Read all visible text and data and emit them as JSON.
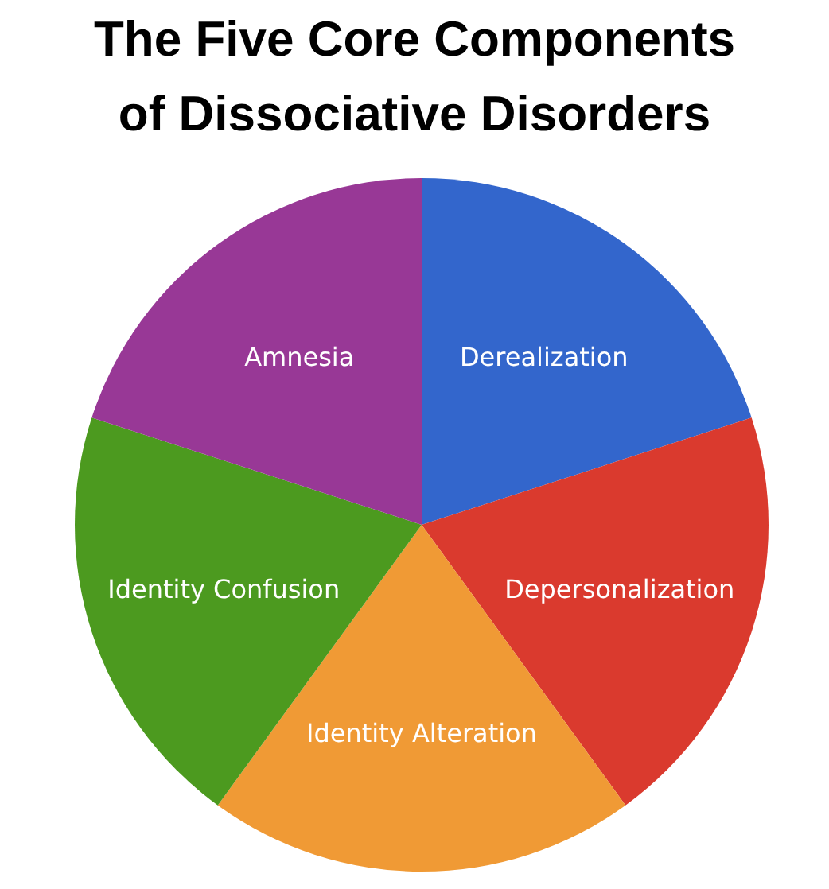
{
  "chart_data": {
    "type": "pie",
    "title": "The Five Core Components of Dissociative Disorders",
    "categories": [
      "Derealization",
      "Depersonalization",
      "Identity Alteration",
      "Identity Confusion",
      "Amnesia"
    ],
    "values": [
      20,
      20,
      20,
      20,
      20
    ],
    "colors": [
      "#3366cc",
      "#da3a2e",
      "#f09a35",
      "#4c9a1f",
      "#983896"
    ]
  }
}
